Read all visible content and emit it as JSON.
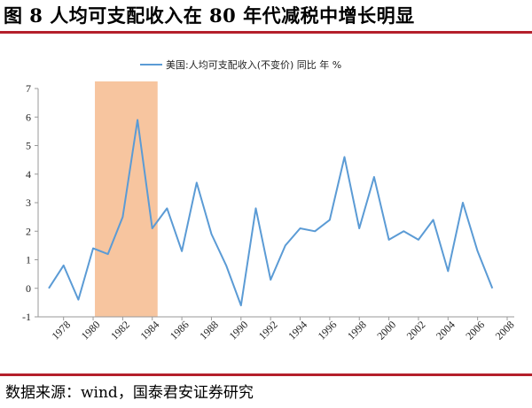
{
  "figure": {
    "title": "图 8  人均可支配收入在 80 年代减税中增长明显",
    "source": "数据来源：wind，国泰君安证券研究"
  },
  "chart_data": {
    "type": "line",
    "legend": "美国:人均可支配收入(不变价) 同比  年 %",
    "legend_position": "top-center",
    "grid": false,
    "x": [
      1977,
      1978,
      1979,
      1980,
      1981,
      1982,
      1983,
      1984,
      1985,
      1986,
      1987,
      1988,
      1989,
      1990,
      1991,
      1992,
      1993,
      1994,
      1995,
      1996,
      1997,
      1998,
      1999,
      2000,
      2001,
      2002,
      2003,
      2004,
      2005,
      2006,
      2007,
      2008
    ],
    "series": [
      {
        "name": "美国:人均可支配收入(不变价) 同比  年 %",
        "values": [
          0.0,
          0.8,
          -0.4,
          1.4,
          1.2,
          2.5,
          5.9,
          2.1,
          2.8,
          1.3,
          3.7,
          1.9,
          0.8,
          -0.6,
          2.8,
          0.3,
          1.5,
          2.1,
          2.0,
          2.4,
          4.6,
          2.1,
          3.9,
          1.7,
          2.0,
          1.7,
          2.4,
          0.6,
          3.0,
          1.3,
          0.0,
          null
        ]
      }
    ],
    "highlight_range": [
      1980,
      1984
    ],
    "highlight_color": "#f7c59f",
    "line_color": "#5b9bd5",
    "ylim": [
      -1,
      7
    ],
    "yticks": [
      -1,
      0,
      1,
      2,
      3,
      4,
      5,
      6,
      7
    ],
    "xlim": [
      1977,
      2008
    ],
    "xticks": [
      1978,
      1980,
      1982,
      1984,
      1986,
      1988,
      1990,
      1992,
      1994,
      1996,
      1998,
      2000,
      2002,
      2004,
      2006,
      2008
    ],
    "xlabel": "",
    "ylabel": ""
  }
}
